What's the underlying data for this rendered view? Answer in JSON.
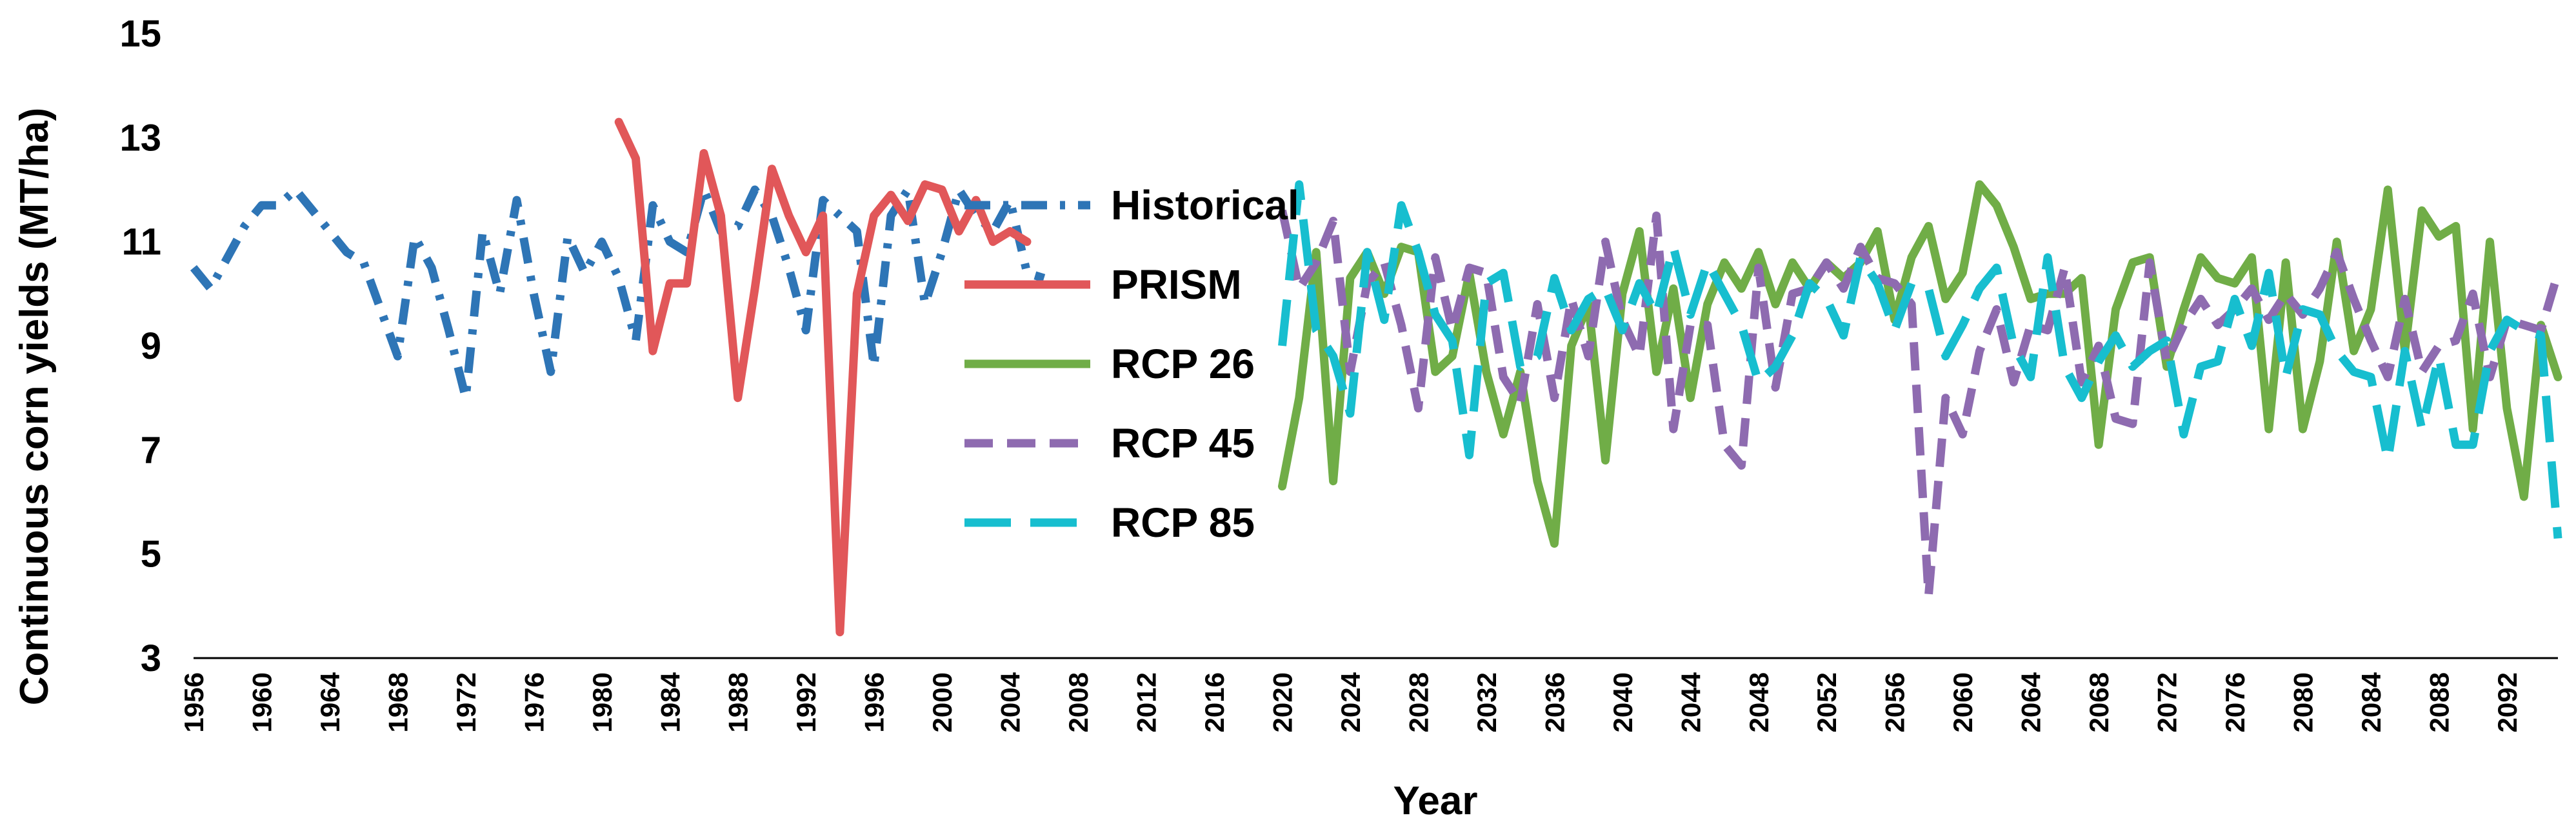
{
  "chart_data": {
    "type": "line",
    "title": "",
    "xlabel": "Year",
    "ylabel": "Continuous corn yields (MT/ha)",
    "xlim": [
      1956,
      2095
    ],
    "ylim": [
      3,
      15
    ],
    "y_ticks": [
      3,
      5,
      7,
      9,
      11,
      13,
      15
    ],
    "x_ticks": [
      1956,
      1960,
      1964,
      1968,
      1972,
      1976,
      1980,
      1984,
      1988,
      1992,
      1996,
      2000,
      2004,
      2008,
      2012,
      2016,
      2020,
      2024,
      2028,
      2032,
      2036,
      2040,
      2044,
      2048,
      2052,
      2056,
      2060,
      2064,
      2068,
      2072,
      2076,
      2080,
      2084,
      2088,
      2092
    ],
    "grid": false,
    "legend_position": "inside-center",
    "series": [
      {
        "name": "Historical",
        "color": "#2E75B6",
        "style": "dash-dot",
        "x_start": 1956,
        "values": [
          10.5,
          10.1,
          10.7,
          11.3,
          11.7,
          11.7,
          12.0,
          11.6,
          11.2,
          10.8,
          10.6,
          9.7,
          8.8,
          11.1,
          10.5,
          9.3,
          8.0,
          11.2,
          10.0,
          11.8,
          10.0,
          8.5,
          11.1,
          10.4,
          11.0,
          10.3,
          9.1,
          11.7,
          11.0,
          10.8,
          12.0,
          11.2,
          11.3,
          12.0,
          11.5,
          10.5,
          9.3,
          11.8,
          11.5,
          11.2,
          8.6,
          11.5,
          12.0,
          9.8,
          10.8,
          12.0,
          11.5,
          11.2,
          11.8,
          10.4,
          10.3
        ]
      },
      {
        "name": "PRISM",
        "color": "#E15759",
        "style": "solid",
        "x_start": 1981,
        "values": [
          13.3,
          12.6,
          8.9,
          10.2,
          10.2,
          12.7,
          11.5,
          8.0,
          10.1,
          12.4,
          11.5,
          10.8,
          11.5,
          3.5,
          10.0,
          11.5,
          11.9,
          11.4,
          12.1,
          12.0,
          11.2,
          11.8,
          11.0,
          11.2,
          11.0
        ]
      },
      {
        "name": "RCP 26",
        "color": "#70AD47",
        "style": "solid",
        "x_start": 2020,
        "values": [
          6.3,
          8.0,
          10.8,
          6.4,
          10.3,
          10.8,
          10.0,
          10.9,
          10.8,
          8.5,
          8.8,
          10.4,
          8.5,
          7.3,
          8.5,
          6.4,
          5.2,
          9.0,
          9.8,
          6.8,
          10.0,
          11.2,
          8.5,
          10.1,
          8.0,
          9.8,
          10.6,
          10.1,
          10.8,
          9.8,
          10.6,
          10.1,
          10.6,
          10.3,
          10.6,
          11.2,
          9.5,
          10.7,
          11.3,
          9.9,
          10.4,
          12.1,
          11.7,
          10.9,
          9.9,
          10.0,
          10.0,
          10.3,
          7.1,
          9.7,
          10.6,
          10.7,
          8.6,
          9.7,
          10.7,
          10.3,
          10.2,
          10.7,
          7.4,
          10.6,
          7.4,
          8.7,
          11.0,
          8.9,
          9.7,
          12.0,
          8.9,
          11.6,
          11.1,
          11.3,
          7.4,
          11.0,
          7.8,
          6.1,
          9.4,
          8.4
        ]
      },
      {
        "name": "RCP 45",
        "color": "#8E6BB0",
        "style": "dashed",
        "x_start": 2020,
        "values": [
          11.6,
          10.1,
          10.6,
          11.4,
          8.5,
          10.2,
          10.6,
          9.4,
          7.8,
          10.7,
          9.3,
          10.5,
          10.4,
          8.4,
          7.9,
          9.8,
          8.0,
          9.9,
          8.8,
          11.0,
          9.5,
          8.8,
          11.5,
          7.4,
          9.4,
          9.4,
          7.1,
          6.7,
          10.5,
          8.2,
          10.0,
          10.1,
          10.6,
          10.1,
          10.9,
          10.3,
          10.2,
          9.8,
          4.2,
          8.0,
          7.3,
          8.9,
          9.7,
          8.3,
          9.4,
          9.3,
          10.5,
          8.3,
          9.0,
          7.6,
          7.5,
          10.6,
          8.7,
          9.4,
          9.9,
          9.4,
          9.7,
          10.1,
          9.5,
          10.0,
          9.6,
          10.1,
          10.8,
          9.9,
          9.1,
          8.4,
          9.9,
          8.5,
          9.0,
          9.1,
          10.0,
          8.4,
          9.5,
          9.4,
          9.3,
          10.4
        ]
      },
      {
        "name": "RCP 85",
        "color": "#17BECF",
        "style": "long-dash",
        "x_start": 2020,
        "values": [
          9.0,
          12.1,
          9.3,
          8.8,
          7.7,
          10.8,
          9.5,
          11.7,
          10.8,
          9.6,
          9.1,
          6.9,
          10.2,
          10.4,
          8.6,
          8.8,
          10.3,
          9.3,
          9.9,
          10.1,
          9.3,
          10.2,
          9.6,
          10.9,
          9.6,
          10.6,
          10.0,
          9.4,
          8.3,
          8.6,
          9.2,
          10.2,
          9.9,
          9.2,
          10.7,
          10.2,
          9.3,
          10.2,
          10.1,
          8.8,
          9.4,
          10.1,
          10.5,
          9.0,
          8.4,
          10.7,
          8.6,
          8.0,
          8.7,
          9.2,
          8.6,
          8.9,
          9.1,
          7.3,
          8.6,
          8.7,
          9.9,
          9.0,
          10.4,
          8.4,
          9.7,
          9.6,
          8.9,
          8.5,
          8.4,
          6.8,
          8.9,
          7.4,
          8.8,
          7.1,
          7.1,
          8.9,
          9.5,
          9.3,
          9.2,
          5.3
        ]
      }
    ]
  }
}
